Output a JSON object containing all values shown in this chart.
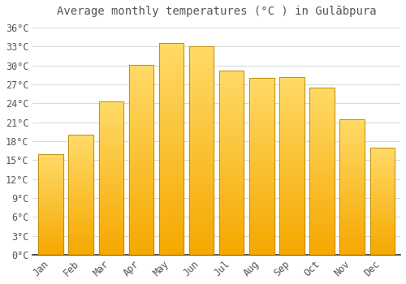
{
  "title": "Average monthly temperatures (°C ) in Gulābpura",
  "months": [
    "Jan",
    "Feb",
    "Mar",
    "Apr",
    "May",
    "Jun",
    "Jul",
    "Aug",
    "Sep",
    "Oct",
    "Nov",
    "Dec"
  ],
  "values": [
    16.0,
    19.0,
    24.3,
    30.1,
    33.5,
    33.0,
    29.2,
    28.0,
    28.2,
    26.5,
    21.5,
    17.0
  ],
  "bar_color_bottom": "#F5A800",
  "bar_color_top": "#FFD966",
  "bar_edge_color": "#B8860B",
  "background_color": "#FFFFFF",
  "grid_color": "#D8D8D8",
  "text_color": "#555555",
  "ylim": [
    0,
    37
  ],
  "yticks": [
    0,
    3,
    6,
    9,
    12,
    15,
    18,
    21,
    24,
    27,
    30,
    33,
    36
  ],
  "title_fontsize": 10,
  "tick_fontsize": 8.5,
  "fig_width": 5.0,
  "fig_height": 3.5,
  "dpi": 100,
  "bar_width": 0.82
}
